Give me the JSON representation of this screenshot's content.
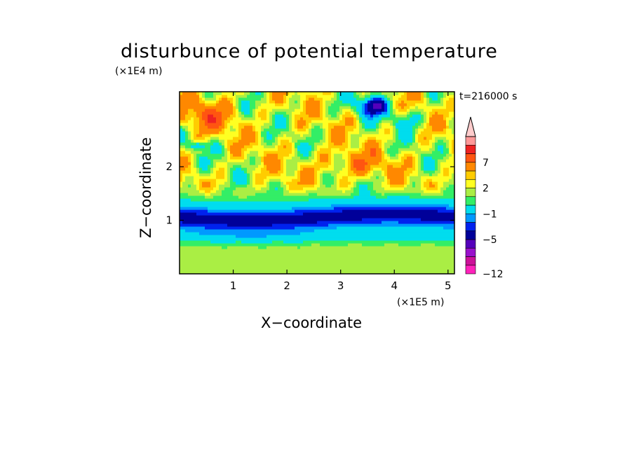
{
  "chart_data": {
    "type": "heatmap",
    "title": "disturbunce of potential temperature",
    "xlabel": "X−coordinate",
    "ylabel": "Z−coordinate",
    "x_unit": "(×1E5 m)",
    "y_unit": "(×1E4 m)",
    "time_label": "t=216000 s",
    "xlim": [
      0,
      5.12
    ],
    "ylim": [
      0,
      3.4
    ],
    "x_ticks": [
      1,
      2,
      3,
      4,
      5
    ],
    "y_ticks": [
      1,
      2
    ],
    "x_tick_labels": [
      "1",
      "2",
      "3",
      "4",
      "5"
    ],
    "y_tick_labels": [
      "1",
      "2"
    ],
    "colorbar": {
      "levels_low_to_high": [
        -12,
        -11,
        -9,
        -7,
        -5,
        -4,
        -3,
        -1,
        0,
        1,
        2,
        3,
        5,
        7,
        9,
        11
      ],
      "tick_values": [
        -12,
        -5,
        -1,
        2,
        7
      ],
      "tick_labels": [
        "−12",
        "−5",
        "−1",
        "2",
        "7"
      ],
      "colors_low_to_high": [
        "#ff22bb",
        "#cc1199",
        "#9911cc",
        "#5500bb",
        "#000099",
        "#0022ee",
        "#0099ff",
        "#00ddee",
        "#33ee66",
        "#aaee44",
        "#ffff22",
        "#ffcc00",
        "#ff8800",
        "#ff5511",
        "#ee2222",
        "#ff9999",
        "#ffcccc"
      ],
      "extend": "max"
    },
    "field_regions": [
      {
        "desc_value": -5,
        "x": [
          0,
          5.12
        ],
        "z": [
          0.85,
          1.45
        ]
      },
      {
        "desc_value": -2,
        "x": [
          0,
          5.12
        ],
        "z": [
          0.55,
          0.85
        ]
      },
      {
        "desc_value": 0.5,
        "x": [
          0,
          5.12
        ],
        "z": [
          0,
          0.55
        ]
      },
      {
        "desc_value": 2,
        "x": [
          0,
          5.12
        ],
        "z": [
          1.45,
          2.3
        ]
      },
      {
        "desc_value": 5,
        "x": [
          0,
          1.2
        ],
        "z": [
          2.4,
          3.2
        ]
      },
      {
        "desc_value": -7,
        "x": [
          3.3,
          3.9
        ],
        "z": [
          2.95,
          3.35
        ]
      }
    ]
  }
}
